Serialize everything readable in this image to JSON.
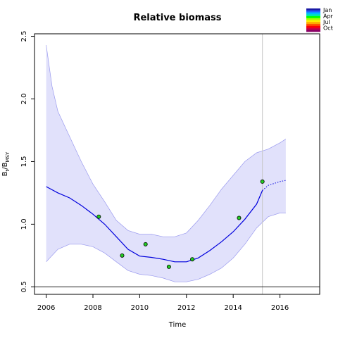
{
  "chart_data": {
    "type": "line",
    "title": "Relative biomass",
    "xlabel": "Time",
    "ylabel": {
      "base": "B",
      "sub1": "t",
      "sep": "/B",
      "sub2": "MSY"
    },
    "xlim": [
      2005.5,
      2017.7
    ],
    "ylim": [
      0.44,
      2.52
    ],
    "xticks": [
      2006,
      2008,
      2010,
      2012,
      2014,
      2016
    ],
    "xtick_labels": [
      "2006",
      "2008",
      "2010",
      "2012",
      "2014",
      "2016"
    ],
    "yticks": [
      0.5,
      1.0,
      1.5,
      2.0,
      2.5
    ],
    "ytick_labels": [
      "0.5",
      "1.0",
      "1.5",
      "2.0",
      "2.5"
    ],
    "grid": false,
    "reference_line_y": 0.5,
    "vline_x": 2015.25,
    "fit_line": {
      "x": [
        2006.0,
        2006.5,
        2007.0,
        2007.5,
        2008.0,
        2008.5,
        2009.0,
        2009.5,
        2010.0,
        2010.5,
        2011.0,
        2011.5,
        2012.0,
        2012.5,
        2013.0,
        2013.5,
        2014.0,
        2014.5,
        2015.0,
        2015.25
      ],
      "y": [
        1.3,
        1.25,
        1.21,
        1.15,
        1.08,
        1.0,
        0.9,
        0.8,
        0.745,
        0.735,
        0.72,
        0.7,
        0.7,
        0.73,
        0.79,
        0.86,
        0.94,
        1.04,
        1.16,
        1.27
      ]
    },
    "projection_line": {
      "x": [
        2015.25,
        2015.5,
        2016.0,
        2016.25
      ],
      "y": [
        1.27,
        1.31,
        1.34,
        1.35
      ]
    },
    "ci_upper": {
      "x": [
        2006.0,
        2006.25,
        2006.5,
        2007.0,
        2007.5,
        2008.0,
        2008.5,
        2009.0,
        2009.5,
        2010.0,
        2010.5,
        2011.0,
        2011.5,
        2012.0,
        2012.5,
        2013.0,
        2013.5,
        2014.0,
        2014.5,
        2015.0,
        2015.5,
        2016.0,
        2016.25
      ],
      "y": [
        2.43,
        2.1,
        1.9,
        1.7,
        1.5,
        1.32,
        1.18,
        1.03,
        0.95,
        0.92,
        0.92,
        0.9,
        0.9,
        0.93,
        1.03,
        1.15,
        1.28,
        1.39,
        1.5,
        1.57,
        1.6,
        1.65,
        1.68
      ]
    },
    "ci_lower": {
      "x": [
        2006.0,
        2006.5,
        2007.0,
        2007.5,
        2008.0,
        2008.5,
        2009.0,
        2009.5,
        2010.0,
        2010.5,
        2011.0,
        2011.5,
        2012.0,
        2012.5,
        2013.0,
        2013.5,
        2014.0,
        2014.5,
        2015.0,
        2015.5,
        2016.0,
        2016.25
      ],
      "y": [
        0.7,
        0.8,
        0.84,
        0.84,
        0.82,
        0.77,
        0.7,
        0.63,
        0.6,
        0.59,
        0.57,
        0.54,
        0.54,
        0.56,
        0.6,
        0.65,
        0.73,
        0.84,
        0.97,
        1.06,
        1.09,
        1.09
      ]
    },
    "points": {
      "x": [
        2008.25,
        2009.25,
        2010.25,
        2011.25,
        2012.25,
        2014.25,
        2015.25
      ],
      "y": [
        1.06,
        0.75,
        0.84,
        0.66,
        0.72,
        1.05,
        1.34
      ]
    },
    "legend": {
      "position": "top-right",
      "labels": [
        "Jan",
        "Apr",
        "Jul",
        "Oct"
      ],
      "colors": [
        "#1a1aa6",
        "#1f5cff",
        "#00b7ff",
        "#00e5b0",
        "#00ff00",
        "#a6ff00",
        "#ffee00",
        "#ffaa00",
        "#ff5500",
        "#ff0000",
        "#cc0044",
        "#8a0066"
      ]
    },
    "colors": {
      "fit": "#0000dd",
      "band_fill": "#e1e1fb",
      "band_edge": "#9a9aee",
      "point_fill": "#22cc22",
      "vline": "#c8c8c8",
      "ref": "#000000"
    }
  }
}
